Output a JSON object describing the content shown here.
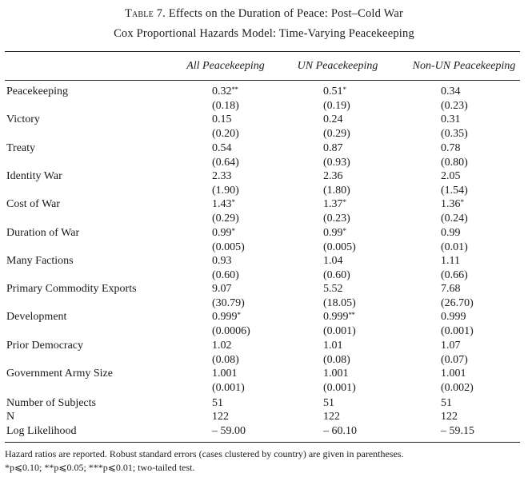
{
  "table": {
    "number_label": "Table 7.",
    "title": "Effects on the Duration of Peace: Post–Cold War",
    "subtitle": "Cox Proportional Hazards Model: Time-Varying Peacekeeping",
    "columns": [
      "All Peacekeeping",
      "UN Peacekeeping",
      "Non-UN Peacekeeping"
    ],
    "rows": [
      {
        "label": "Peacekeeping",
        "values": [
          {
            "v": "0.32",
            "sig": "**"
          },
          {
            "v": "0.51",
            "sig": "*"
          },
          {
            "v": "0.34",
            "sig": ""
          }
        ],
        "se": [
          "(0.18)",
          "(0.19)",
          "(0.23)"
        ]
      },
      {
        "label": "Victory",
        "values": [
          {
            "v": "0.15",
            "sig": ""
          },
          {
            "v": "0.24",
            "sig": ""
          },
          {
            "v": "0.31",
            "sig": ""
          }
        ],
        "se": [
          "(0.20)",
          "(0.29)",
          "(0.35)"
        ]
      },
      {
        "label": "Treaty",
        "values": [
          {
            "v": "0.54",
            "sig": ""
          },
          {
            "v": "0.87",
            "sig": ""
          },
          {
            "v": "0.78",
            "sig": ""
          }
        ],
        "se": [
          "(0.64)",
          "(0.93)",
          "(0.80)"
        ]
      },
      {
        "label": "Identity War",
        "values": [
          {
            "v": "2.33",
            "sig": ""
          },
          {
            "v": "2.36",
            "sig": ""
          },
          {
            "v": "2.05",
            "sig": ""
          }
        ],
        "se": [
          "(1.90)",
          "(1.80)",
          "(1.54)"
        ]
      },
      {
        "label": "Cost of War",
        "values": [
          {
            "v": "1.43",
            "sig": "*"
          },
          {
            "v": "1.37",
            "sig": "*"
          },
          {
            "v": "1.36",
            "sig": "*"
          }
        ],
        "se": [
          "(0.29)",
          "(0.23)",
          "(0.24)"
        ]
      },
      {
        "label": "Duration of War",
        "values": [
          {
            "v": "0.99",
            "sig": "*"
          },
          {
            "v": "0.99",
            "sig": "*"
          },
          {
            "v": "0.99",
            "sig": ""
          }
        ],
        "se": [
          "(0.005)",
          "(0.005)",
          "(0.01)"
        ]
      },
      {
        "label": "Many Factions",
        "values": [
          {
            "v": "0.93",
            "sig": ""
          },
          {
            "v": "1.04",
            "sig": ""
          },
          {
            "v": "1.11",
            "sig": ""
          }
        ],
        "se": [
          "(0.60)",
          "(0.60)",
          "(0.66)"
        ]
      },
      {
        "label": "Primary Commodity Exports",
        "values": [
          {
            "v": "9.07",
            "sig": ""
          },
          {
            "v": "5.52",
            "sig": ""
          },
          {
            "v": "7.68",
            "sig": ""
          }
        ],
        "se": [
          "(30.79)",
          "(18.05)",
          "(26.70)"
        ]
      },
      {
        "label": "Development",
        "values": [
          {
            "v": "0.999",
            "sig": "*"
          },
          {
            "v": "0.999",
            "sig": "**"
          },
          {
            "v": "0.999",
            "sig": ""
          }
        ],
        "se": [
          "(0.0006)",
          "(0.001)",
          "(0.001)"
        ]
      },
      {
        "label": "Prior Democracy",
        "values": [
          {
            "v": "1.02",
            "sig": ""
          },
          {
            "v": "1.01",
            "sig": ""
          },
          {
            "v": "1.07",
            "sig": ""
          }
        ],
        "se": [
          "(0.08)",
          "(0.08)",
          "(0.07)"
        ]
      },
      {
        "label": "Government Army Size",
        "values": [
          {
            "v": "1.001",
            "sig": ""
          },
          {
            "v": "1.001",
            "sig": ""
          },
          {
            "v": "1.001",
            "sig": ""
          }
        ],
        "se": [
          "(0.001)",
          "(0.001)",
          "(0.002)"
        ]
      }
    ],
    "summary": [
      {
        "label": "Number of Subjects",
        "values": [
          "51",
          "51",
          "51"
        ]
      },
      {
        "label": "N",
        "values": [
          "122",
          "122",
          "122"
        ]
      },
      {
        "label": "Log Likelihood",
        "values": [
          "– 59.00",
          "– 60.10",
          "– 59.15"
        ]
      }
    ],
    "notes": [
      "Hazard ratios are reported. Robust standard errors (cases clustered by country) are given in parentheses.",
      "*p⩽0.10; **p⩽0.05; ***p⩽0.01; two-tailed test."
    ]
  }
}
